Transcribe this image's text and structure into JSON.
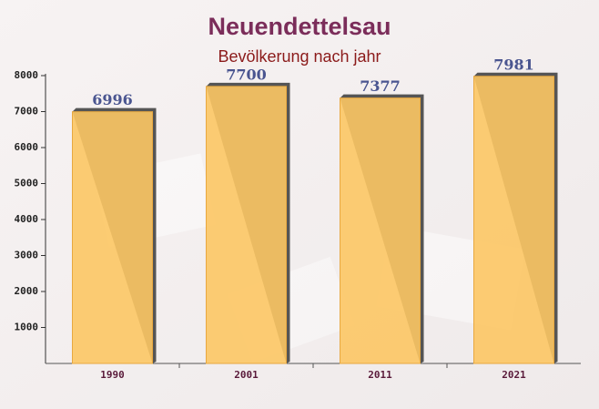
{
  "chart_data": {
    "type": "bar",
    "title": "Neuendettelsau",
    "subtitle": "Bevölkerung nach jahr",
    "categories": [
      "1990",
      "2001",
      "2011",
      "2021"
    ],
    "values": [
      6996,
      7700,
      7377,
      7981
    ],
    "color": "#fcc764",
    "ylim": [
      0,
      8000
    ],
    "yticks": [
      1000,
      2000,
      3000,
      4000,
      5000,
      6000,
      7000,
      8000
    ]
  }
}
